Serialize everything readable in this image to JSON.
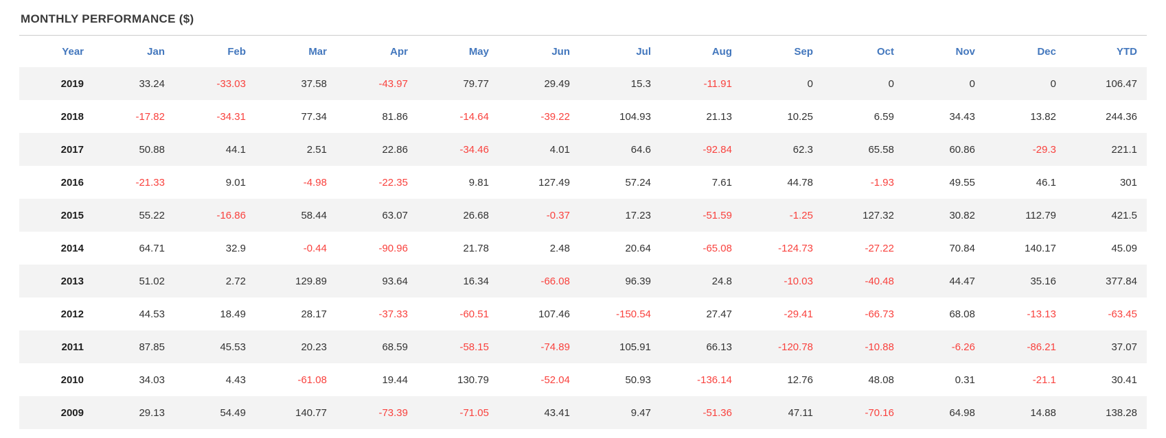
{
  "title": "MONTHLY PERFORMANCE ($)",
  "colors": {
    "title_text": "#3b3b3b",
    "header_text": "#4377bd",
    "value_text": "#333333",
    "year_text": "#1e1e1e",
    "negative_value": "#f9423e",
    "alt_row_background": "#f3f3f3",
    "divider": "#cccccc"
  },
  "chart_data": {
    "type": "table",
    "title": "MONTHLY PERFORMANCE ($)",
    "columns": [
      "Year",
      "Jan",
      "Feb",
      "Mar",
      "Apr",
      "May",
      "Jun",
      "Jul",
      "Aug",
      "Sep",
      "Oct",
      "Nov",
      "Dec",
      "YTD"
    ],
    "rows": [
      {
        "year": "2019",
        "values": [
          33.24,
          -33.03,
          37.58,
          -43.97,
          79.77,
          29.49,
          15.3,
          -11.91,
          0,
          0,
          0,
          0,
          106.47
        ]
      },
      {
        "year": "2018",
        "values": [
          -17.82,
          -34.31,
          77.34,
          81.86,
          -14.64,
          -39.22,
          104.93,
          21.13,
          10.25,
          6.59,
          34.43,
          13.82,
          244.36
        ]
      },
      {
        "year": "2017",
        "values": [
          50.88,
          44.1,
          2.51,
          22.86,
          -34.46,
          4.01,
          64.6,
          -92.84,
          62.3,
          65.58,
          60.86,
          -29.3,
          221.1
        ]
      },
      {
        "year": "2016",
        "values": [
          -21.33,
          9.01,
          -4.98,
          -22.35,
          9.81,
          127.49,
          57.24,
          7.61,
          44.78,
          -1.93,
          49.55,
          46.1,
          301
        ]
      },
      {
        "year": "2015",
        "values": [
          55.22,
          -16.86,
          58.44,
          63.07,
          26.68,
          -0.37,
          17.23,
          -51.59,
          -1.25,
          127.32,
          30.82,
          112.79,
          421.5
        ]
      },
      {
        "year": "2014",
        "values": [
          64.71,
          32.9,
          -0.44,
          -90.96,
          21.78,
          2.48,
          20.64,
          -65.08,
          -124.73,
          -27.22,
          70.84,
          140.17,
          45.09
        ]
      },
      {
        "year": "2013",
        "values": [
          51.02,
          2.72,
          129.89,
          93.64,
          16.34,
          -66.08,
          96.39,
          24.8,
          -10.03,
          -40.48,
          44.47,
          35.16,
          377.84
        ]
      },
      {
        "year": "2012",
        "values": [
          44.53,
          18.49,
          28.17,
          -37.33,
          -60.51,
          107.46,
          -150.54,
          27.47,
          -29.41,
          -66.73,
          68.08,
          -13.13,
          -63.45
        ]
      },
      {
        "year": "2011",
        "values": [
          87.85,
          45.53,
          20.23,
          68.59,
          -58.15,
          -74.89,
          105.91,
          66.13,
          -120.78,
          -10.88,
          -6.26,
          -86.21,
          37.07
        ]
      },
      {
        "year": "2010",
        "values": [
          34.03,
          4.43,
          -61.08,
          19.44,
          130.79,
          -52.04,
          50.93,
          -136.14,
          12.76,
          48.08,
          0.31,
          -21.1,
          30.41
        ]
      },
      {
        "year": "2009",
        "values": [
          29.13,
          54.49,
          140.77,
          -73.39,
          -71.05,
          43.41,
          9.47,
          -51.36,
          47.11,
          -70.16,
          64.98,
          14.88,
          138.28
        ]
      }
    ],
    "layout": {
      "negative_values_in_red": true,
      "alternating_row_shading": "odd rows shaded starting with first data row (2019)",
      "alignment": "all columns right-aligned",
      "years_bold": true
    }
  }
}
